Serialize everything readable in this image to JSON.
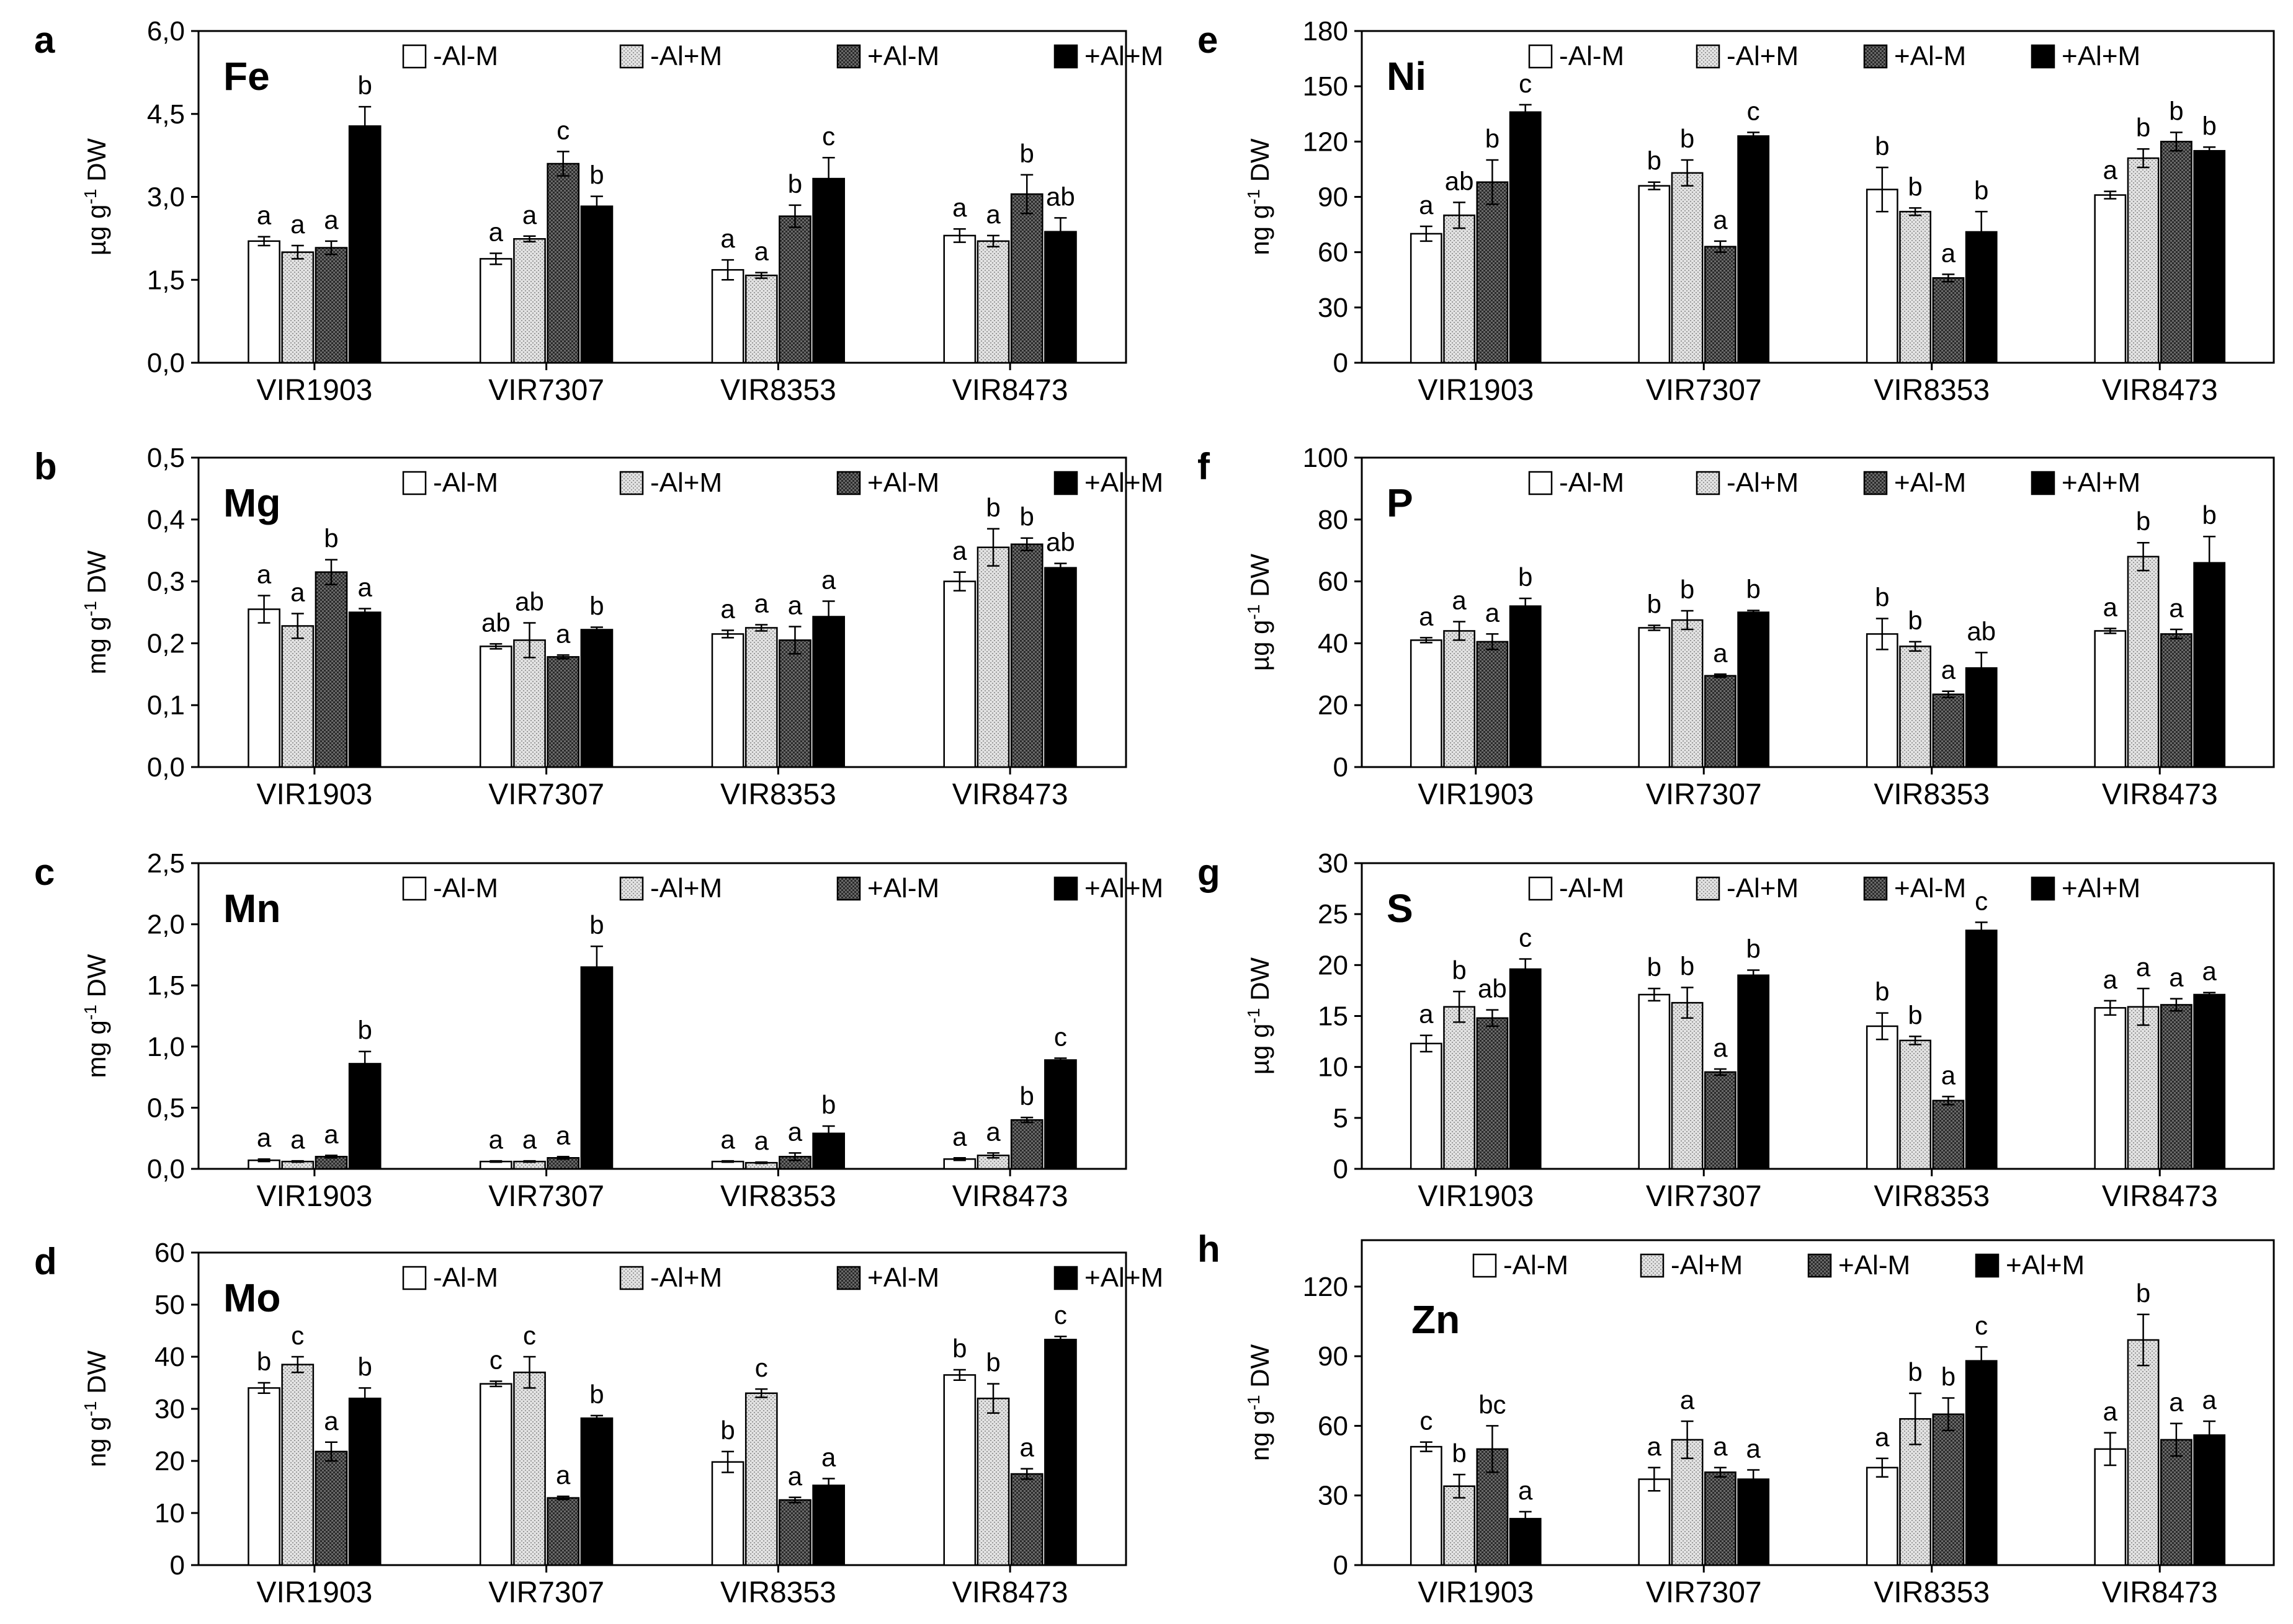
{
  "figure": {
    "groups": [
      "VIR1903",
      "VIR7307",
      "VIR8353",
      "VIR8473"
    ],
    "legend": [
      "-Al-M",
      "-Al+M",
      "+Al-M",
      "+Al+M"
    ],
    "treatment_styles": [
      "white",
      "dotted-light",
      "checker-dark",
      "black"
    ]
  },
  "chart_data": [
    {
      "type": "bar",
      "panel": "a",
      "title": "Fe",
      "ylabel_prefix": "µg g",
      "ylabel_exp": "-1",
      "ylabel_suffix": " DW",
      "ylim": [
        0,
        6
      ],
      "ytick_values": [
        0,
        1.5,
        3,
        4.5,
        6
      ],
      "ytick_labels": [
        "0,0",
        "1,5",
        "3,0",
        "4,5",
        "6,0"
      ],
      "categories": [
        "VIR1903",
        "VIR7307",
        "VIR8353",
        "VIR8473"
      ],
      "series": [
        {
          "name": "-Al-M",
          "values": [
            2.2,
            1.88,
            1.68,
            2.3
          ],
          "err": [
            0.08,
            0.1,
            0.18,
            0.12
          ],
          "letters": [
            "a",
            "a",
            "a",
            "a"
          ]
        },
        {
          "name": "-Al+M",
          "values": [
            2.0,
            2.24,
            1.58,
            2.2
          ],
          "err": [
            0.12,
            0.05,
            0.05,
            0.1
          ],
          "letters": [
            "a",
            "a",
            "a",
            "a"
          ]
        },
        {
          "name": "+Al-M",
          "values": [
            2.08,
            3.6,
            2.65,
            3.05
          ],
          "err": [
            0.12,
            0.22,
            0.2,
            0.35
          ],
          "letters": [
            "a",
            "c",
            "b",
            "b"
          ]
        },
        {
          "name": "+Al+M",
          "values": [
            4.28,
            2.83,
            3.33,
            2.37
          ],
          "err": [
            0.35,
            0.18,
            0.38,
            0.25
          ],
          "letters": [
            "b",
            "b",
            "c",
            "ab"
          ]
        }
      ]
    },
    {
      "type": "bar",
      "panel": "b",
      "title": "Mg",
      "ylabel_prefix": "mg g",
      "ylabel_exp": "-1",
      "ylabel_suffix": " DW",
      "ylim": [
        0,
        0.5
      ],
      "ytick_values": [
        0,
        0.1,
        0.2,
        0.3,
        0.4,
        0.5
      ],
      "ytick_labels": [
        "0,0",
        "0,1",
        "0,2",
        "0,3",
        "0,4",
        "0,5"
      ],
      "categories": [
        "VIR1903",
        "VIR7307",
        "VIR8353",
        "VIR8473"
      ],
      "series": [
        {
          "name": "-Al-M",
          "values": [
            0.255,
            0.195,
            0.215,
            0.3
          ],
          "err": [
            0.022,
            0.004,
            0.006,
            0.015
          ],
          "letters": [
            "a",
            "ab",
            "a",
            "a"
          ]
        },
        {
          "name": "-Al+M",
          "values": [
            0.228,
            0.205,
            0.225,
            0.355
          ],
          "err": [
            0.02,
            0.028,
            0.005,
            0.03
          ],
          "letters": [
            "a",
            "ab",
            "a",
            "b"
          ]
        },
        {
          "name": "+Al-M",
          "values": [
            0.315,
            0.178,
            0.205,
            0.36
          ],
          "err": [
            0.02,
            0.003,
            0.022,
            0.01
          ],
          "letters": [
            "b",
            "a",
            "a",
            "b"
          ]
        },
        {
          "name": "+Al+M",
          "values": [
            0.25,
            0.222,
            0.243,
            0.322
          ],
          "err": [
            0.006,
            0.004,
            0.025,
            0.007
          ],
          "letters": [
            "a",
            "b",
            "a",
            "ab"
          ]
        }
      ]
    },
    {
      "type": "bar",
      "panel": "c",
      "title": "Mn",
      "ylabel_prefix": "mg g",
      "ylabel_exp": "-1",
      "ylabel_suffix": " DW",
      "ylim": [
        0,
        2.5
      ],
      "ytick_values": [
        0,
        0.5,
        1,
        1.5,
        2,
        2.5
      ],
      "ytick_labels": [
        "0,0",
        "0,5",
        "1,0",
        "1,5",
        "2,0",
        "2,5"
      ],
      "categories": [
        "VIR1903",
        "VIR7307",
        "VIR8353",
        "VIR8473"
      ],
      "series": [
        {
          "name": "-Al-M",
          "values": [
            0.07,
            0.06,
            0.06,
            0.08
          ],
          "err": [
            0.01,
            0.005,
            0.005,
            0.01
          ],
          "letters": [
            "a",
            "a",
            "a",
            "a"
          ]
        },
        {
          "name": "-Al+M",
          "values": [
            0.06,
            0.06,
            0.05,
            0.11
          ],
          "err": [
            0.005,
            0.005,
            0.005,
            0.02
          ],
          "letters": [
            "a",
            "a",
            "a",
            "a"
          ]
        },
        {
          "name": "+Al-M",
          "values": [
            0.1,
            0.09,
            0.1,
            0.4
          ],
          "err": [
            0.01,
            0.01,
            0.03,
            0.02
          ],
          "letters": [
            "a",
            "a",
            "a",
            "b"
          ]
        },
        {
          "name": "+Al+M",
          "values": [
            0.86,
            1.65,
            0.29,
            0.89
          ],
          "err": [
            0.1,
            0.17,
            0.06,
            0.015
          ],
          "letters": [
            "b",
            "b",
            "b",
            "c"
          ]
        }
      ]
    },
    {
      "type": "bar",
      "panel": "d",
      "title": "Mo",
      "ylabel_prefix": "ng g",
      "ylabel_exp": "-1",
      "ylabel_suffix": " DW",
      "ylim": [
        0,
        60
      ],
      "ytick_values": [
        0,
        10,
        20,
        30,
        40,
        50,
        60
      ],
      "ytick_labels": [
        "0",
        "10",
        "20",
        "30",
        "40",
        "50",
        "60"
      ],
      "categories": [
        "VIR1903",
        "VIR7307",
        "VIR8353",
        "VIR8473"
      ],
      "series": [
        {
          "name": "-Al-M",
          "values": [
            34,
            34.8,
            19.8,
            36.5
          ],
          "err": [
            1,
            0.5,
            2,
            1
          ],
          "letters": [
            "b",
            "c",
            "b",
            "b"
          ]
        },
        {
          "name": "-Al+M",
          "values": [
            38.5,
            37,
            33,
            32
          ],
          "err": [
            1.5,
            3,
            0.8,
            2.8
          ],
          "letters": [
            "c",
            "c",
            "c",
            "b"
          ]
        },
        {
          "name": "+Al-M",
          "values": [
            21.8,
            12.9,
            12.5,
            17.5
          ],
          "err": [
            1.8,
            0.3,
            0.5,
            1
          ],
          "letters": [
            "a",
            "a",
            "a",
            "a"
          ]
        },
        {
          "name": "+Al+M",
          "values": [
            32,
            28.2,
            15.3,
            43.3
          ],
          "err": [
            2,
            0.5,
            1.3,
            0.6
          ],
          "letters": [
            "b",
            "b",
            "a",
            "c"
          ]
        }
      ]
    },
    {
      "type": "bar",
      "panel": "e",
      "title": "Ni",
      "ylabel_prefix": "ng g",
      "ylabel_exp": "-1",
      "ylabel_suffix": " DW",
      "ylim": [
        0,
        180
      ],
      "ytick_values": [
        0,
        30,
        60,
        90,
        120,
        150,
        180
      ],
      "ytick_labels": [
        "0",
        "30",
        "60",
        "90",
        "120",
        "150",
        "180"
      ],
      "categories": [
        "VIR1903",
        "VIR7307",
        "VIR8353",
        "VIR8473"
      ],
      "series": [
        {
          "name": "-Al-M",
          "values": [
            70,
            96,
            94,
            91
          ],
          "err": [
            4,
            2,
            12,
            2
          ],
          "letters": [
            "a",
            "b",
            "b",
            "a"
          ]
        },
        {
          "name": "-Al+M",
          "values": [
            80,
            103,
            82,
            111
          ],
          "err": [
            7,
            7,
            2,
            5
          ],
          "letters": [
            "ab",
            "b",
            "b",
            "b"
          ]
        },
        {
          "name": "+Al-M",
          "values": [
            98,
            63,
            46,
            120
          ],
          "err": [
            12,
            3,
            2,
            5
          ],
          "letters": [
            "b",
            "a",
            "a",
            "b"
          ]
        },
        {
          "name": "+Al+M",
          "values": [
            136,
            123,
            71,
            115
          ],
          "err": [
            4,
            2,
            11,
            2
          ],
          "letters": [
            "c",
            "c",
            "b",
            "b"
          ]
        }
      ]
    },
    {
      "type": "bar",
      "panel": "f",
      "title": "P",
      "ylabel_prefix": "µg g",
      "ylabel_exp": "-1",
      "ylabel_suffix": " DW",
      "ylim": [
        0,
        100
      ],
      "ytick_values": [
        0,
        20,
        40,
        60,
        80,
        100
      ],
      "ytick_labels": [
        "0",
        "20",
        "40",
        "60",
        "80",
        "100"
      ],
      "categories": [
        "VIR1903",
        "VIR7307",
        "VIR8353",
        "VIR8473"
      ],
      "series": [
        {
          "name": "-Al-M",
          "values": [
            41,
            45,
            43,
            44
          ],
          "err": [
            0.8,
            0.8,
            5,
            0.8
          ],
          "letters": [
            "a",
            "b",
            "b",
            "a"
          ]
        },
        {
          "name": "-Al+M",
          "values": [
            44,
            47.5,
            39,
            68
          ],
          "err": [
            3,
            3,
            1.5,
            4.5
          ],
          "letters": [
            "a",
            "b",
            "b",
            "b"
          ]
        },
        {
          "name": "+Al-M",
          "values": [
            40.5,
            29.5,
            23.5,
            43
          ],
          "err": [
            2.5,
            0.5,
            1,
            1.5
          ],
          "letters": [
            "a",
            "a",
            "a",
            "a"
          ]
        },
        {
          "name": "+Al+M",
          "values": [
            52,
            50,
            32,
            66
          ],
          "err": [
            2.5,
            0.6,
            5,
            8.5
          ],
          "letters": [
            "b",
            "b",
            "ab",
            "b"
          ]
        }
      ]
    },
    {
      "type": "bar",
      "panel": "g",
      "title": "S",
      "ylabel_prefix": "µg g",
      "ylabel_exp": "-1",
      "ylabel_suffix": " DW",
      "ylim": [
        0,
        30
      ],
      "ytick_values": [
        0,
        5,
        10,
        15,
        20,
        25,
        30
      ],
      "ytick_labels": [
        "0",
        "5",
        "10",
        "15",
        "20",
        "25",
        "30"
      ],
      "categories": [
        "VIR1903",
        "VIR7307",
        "VIR8353",
        "VIR8473"
      ],
      "series": [
        {
          "name": "-Al-M",
          "values": [
            12.3,
            17.1,
            14,
            15.8
          ],
          "err": [
            0.8,
            0.6,
            1.3,
            0.7
          ],
          "letters": [
            "a",
            "b",
            "b",
            "a"
          ]
        },
        {
          "name": "-Al+M",
          "values": [
            15.9,
            16.3,
            12.6,
            15.9
          ],
          "err": [
            1.5,
            1.5,
            0.4,
            1.8
          ],
          "letters": [
            "b",
            "b",
            "b",
            "a"
          ]
        },
        {
          "name": "+Al-M",
          "values": [
            14.8,
            9.5,
            6.7,
            16.1
          ],
          "err": [
            0.8,
            0.3,
            0.4,
            0.6
          ],
          "letters": [
            "ab",
            "a",
            "a",
            "a"
          ]
        },
        {
          "name": "+Al+M",
          "values": [
            19.6,
            19,
            23.4,
            17.1
          ],
          "err": [
            1,
            0.5,
            0.8,
            0.2
          ],
          "letters": [
            "c",
            "b",
            "c",
            "a"
          ]
        }
      ]
    },
    {
      "type": "bar",
      "panel": "h",
      "title": "Zn",
      "ylabel_prefix": "ng g",
      "ylabel_exp": "-1",
      "ylabel_suffix": " DW",
      "ylim": [
        0,
        140
      ],
      "ytick_values": [
        0,
        30,
        60,
        90,
        120
      ],
      "ytick_labels": [
        "0",
        "30",
        "60",
        "90",
        "120"
      ],
      "categories": [
        "VIR1903",
        "VIR7307",
        "VIR8353",
        "VIR8473"
      ],
      "series": [
        {
          "name": "-Al-M",
          "values": [
            51,
            37,
            42,
            50
          ],
          "err": [
            2,
            5,
            4,
            7
          ],
          "letters": [
            "c",
            "a",
            "a",
            "a"
          ]
        },
        {
          "name": "-Al+M",
          "values": [
            34,
            54,
            63,
            97
          ],
          "err": [
            5,
            8,
            11,
            11
          ],
          "letters": [
            "b",
            "a",
            "b",
            "b"
          ]
        },
        {
          "name": "+Al-M",
          "values": [
            50,
            40,
            65,
            54
          ],
          "err": [
            10,
            2,
            7,
            7
          ],
          "letters": [
            "bc",
            "a",
            "b",
            "a"
          ]
        },
        {
          "name": "+Al+M",
          "values": [
            20,
            37,
            88,
            56
          ],
          "err": [
            3,
            4,
            6,
            6
          ],
          "letters": [
            "a",
            "a",
            "c",
            "a"
          ]
        }
      ]
    }
  ]
}
